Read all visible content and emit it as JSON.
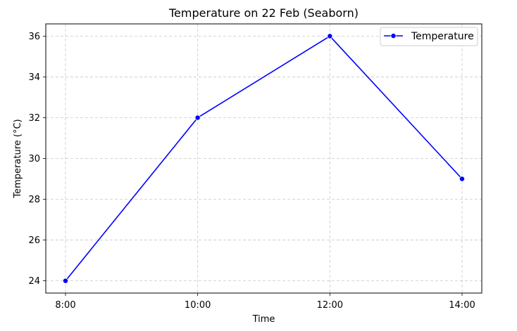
{
  "chart_data": {
    "type": "line",
    "title": "Temperature on 22 Feb (Seaborn)",
    "xlabel": "Time",
    "ylabel": "Temperature (°C)",
    "categories": [
      "8:00",
      "10:00",
      "12:00",
      "14:00"
    ],
    "series": [
      {
        "name": "Temperature",
        "values": [
          24,
          32,
          36,
          29
        ],
        "color": "#0000ff"
      }
    ],
    "yticks": [
      "24",
      "26",
      "28",
      "30",
      "32",
      "34",
      "36"
    ],
    "ylim": [
      23.4,
      36.6
    ],
    "grid": true,
    "grid_style": "dashed",
    "legend_position": "top-right",
    "marker": "circle"
  }
}
